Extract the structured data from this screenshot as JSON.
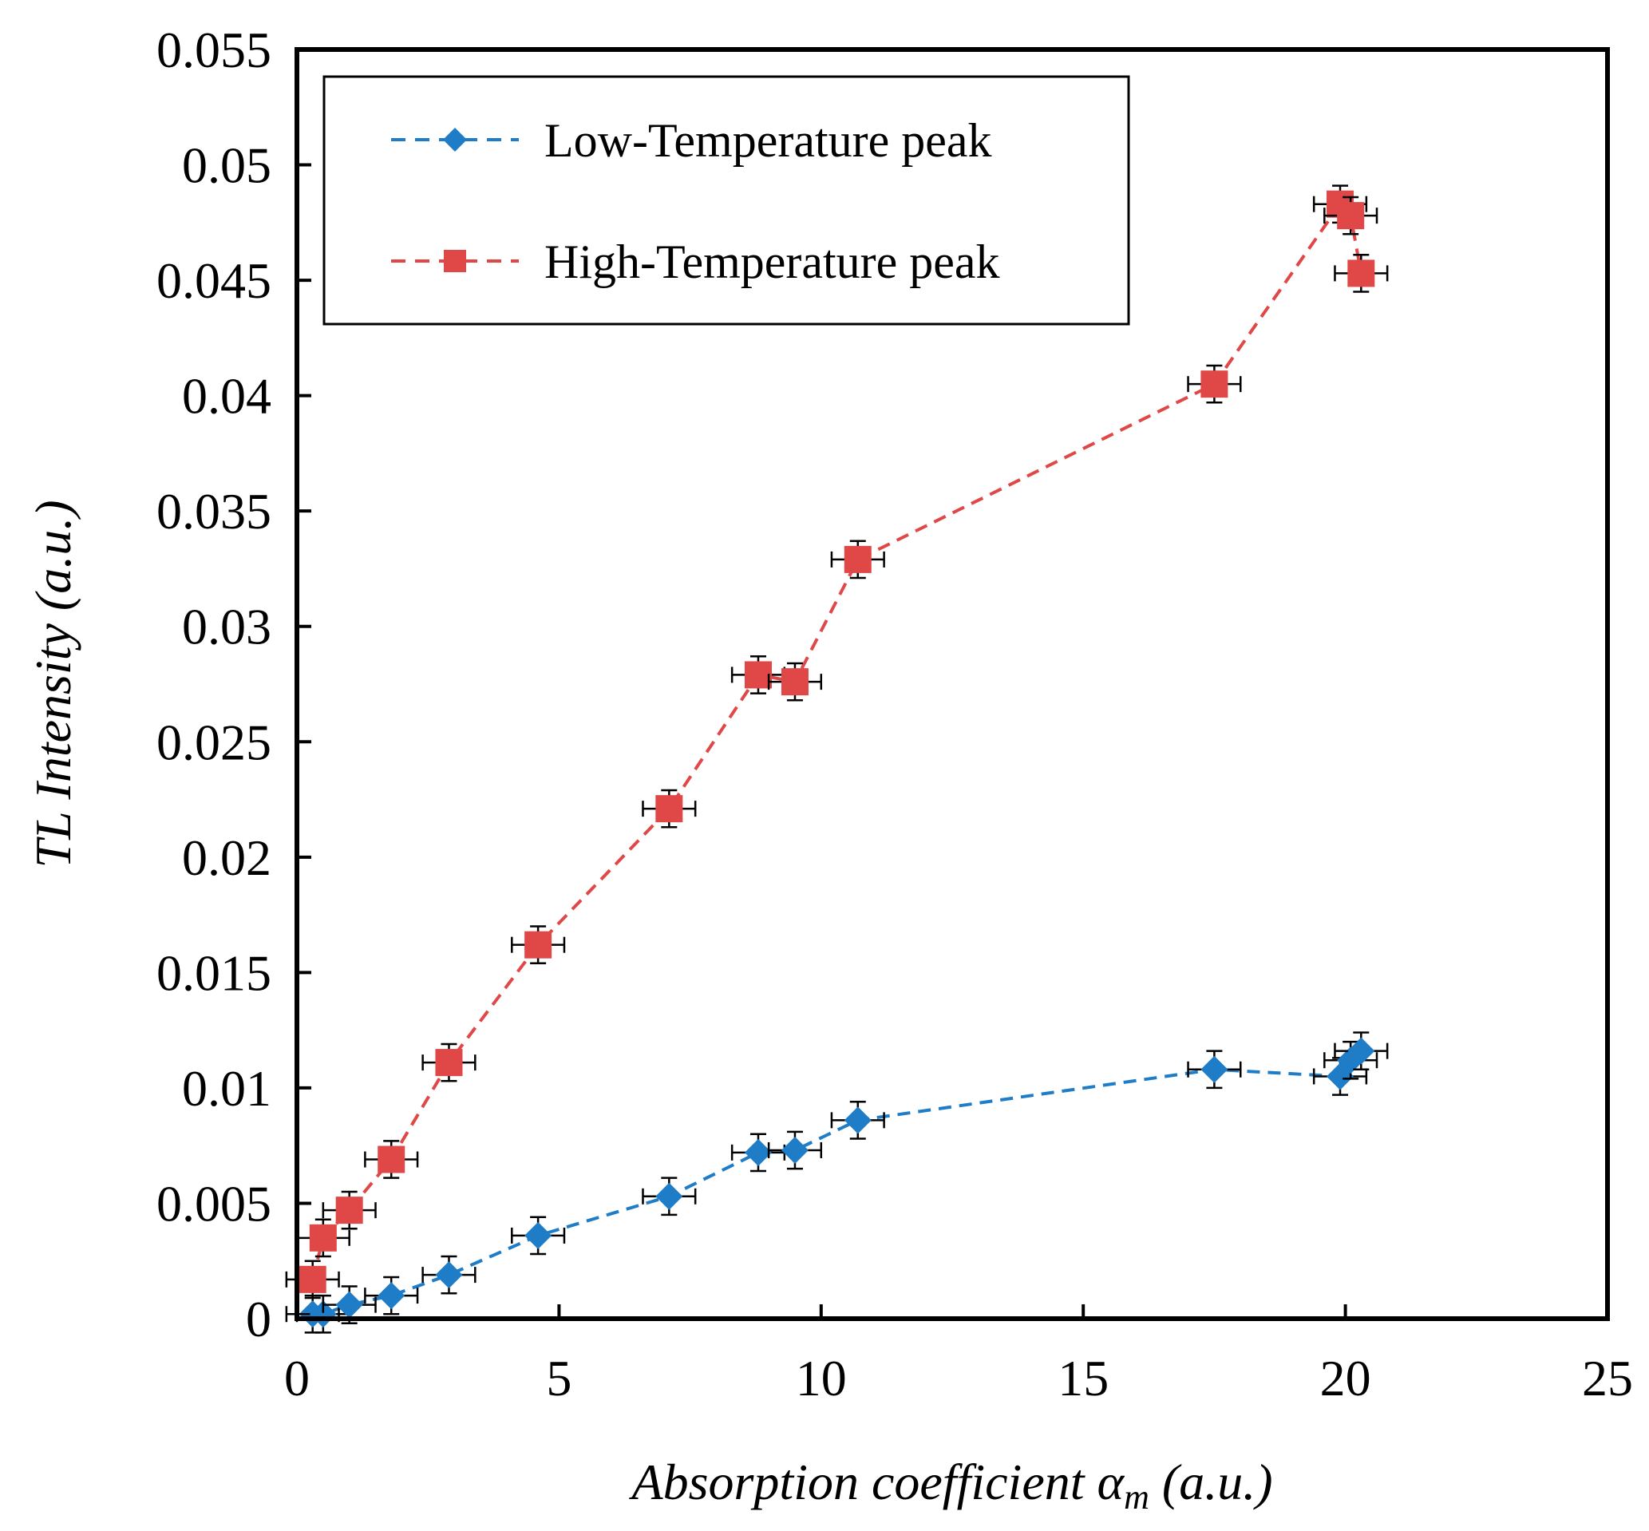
{
  "chart_data": {
    "type": "scatter",
    "title": "",
    "xlabel": "Absorption coefficient α",
    "xlabel_subscript": "m",
    "xlabel_unit": " (a.u.)",
    "ylabel": "TL Intensity (a.u.)",
    "xlim": [
      0,
      25
    ],
    "ylim": [
      0,
      0.055
    ],
    "xticks": [
      0,
      5,
      10,
      15,
      20,
      25
    ],
    "xtick_labels": [
      "0",
      "5",
      "10",
      "15",
      "20",
      "25"
    ],
    "yticks": [
      0,
      0.005,
      0.01,
      0.015,
      0.02,
      0.025,
      0.03,
      0.035,
      0.04,
      0.045,
      0.05,
      0.055
    ],
    "ytick_labels": [
      "0",
      "0.005",
      "0.01",
      "0.015",
      "0.02",
      "0.025",
      "0.03",
      "0.035",
      "0.04",
      "0.045",
      "0.05",
      "0.055"
    ],
    "grid": false,
    "legend_position": "top-left",
    "series": [
      {
        "name": "Low-Temperature peak",
        "color": "#1f7cc7",
        "marker": "diamond",
        "line_style": "dashed",
        "x": [
          0.3,
          0.5,
          1.0,
          1.8,
          2.9,
          4.6,
          7.1,
          8.8,
          9.5,
          10.7,
          17.5,
          19.9,
          20.1,
          20.3
        ],
        "y": [
          0.0002,
          0.0002,
          0.0006,
          0.001,
          0.0019,
          0.0036,
          0.0053,
          0.0072,
          0.0073,
          0.0086,
          0.0108,
          0.0105,
          0.0112,
          0.0116
        ],
        "xerr": [
          0.5,
          0.5,
          0.5,
          0.5,
          0.5,
          0.5,
          0.5,
          0.5,
          0.5,
          0.5,
          0.5,
          0.5,
          0.5,
          0.5
        ],
        "yerr": [
          0.0008,
          0.0008,
          0.0008,
          0.0008,
          0.0008,
          0.0008,
          0.0008,
          0.0008,
          0.0008,
          0.0008,
          0.0008,
          0.0008,
          0.0008,
          0.0008
        ]
      },
      {
        "name": "High-Temperature peak",
        "color": "#e04848",
        "marker": "square",
        "line_style": "dashed",
        "x": [
          0.3,
          0.5,
          1.0,
          1.8,
          2.9,
          4.6,
          7.1,
          8.8,
          9.5,
          10.7,
          17.5,
          19.9,
          20.1,
          20.3
        ],
        "y": [
          0.0017,
          0.0035,
          0.0047,
          0.0069,
          0.0111,
          0.0162,
          0.0221,
          0.0279,
          0.0276,
          0.0329,
          0.0405,
          0.0483,
          0.0478,
          0.0453
        ],
        "xerr": [
          0.5,
          0.5,
          0.5,
          0.5,
          0.5,
          0.5,
          0.5,
          0.5,
          0.5,
          0.5,
          0.5,
          0.5,
          0.5,
          0.5
        ],
        "yerr": [
          0.0008,
          0.0008,
          0.0008,
          0.0008,
          0.0008,
          0.0008,
          0.0008,
          0.0008,
          0.0008,
          0.0008,
          0.0008,
          0.0008,
          0.0008,
          0.0008
        ]
      }
    ]
  }
}
